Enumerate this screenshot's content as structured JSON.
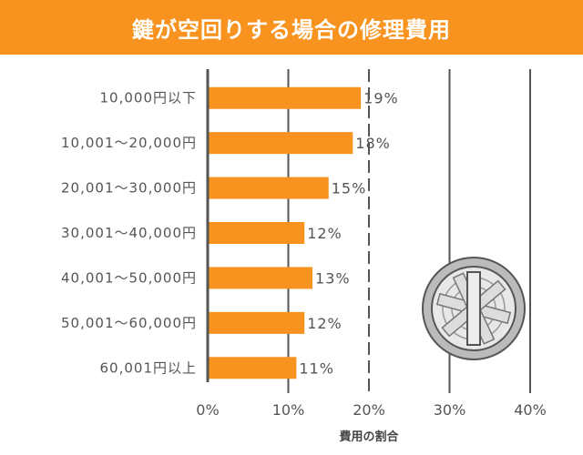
{
  "chart_data": {
    "type": "bar",
    "orientation": "horizontal",
    "title": "鍵が空回りする場合の修理費用",
    "xlabel": "費用の割合",
    "ylabel": "",
    "categories": [
      "10,000円以下",
      "10,001〜20,000円",
      "20,001〜30,000円",
      "30,001〜40,000円",
      "40,001〜50,000円",
      "50,001〜60,000円",
      "60,001円以上"
    ],
    "values": [
      19,
      18,
      15,
      12,
      13,
      12,
      11
    ],
    "value_labels": [
      "19%",
      "18%",
      "15%",
      "12%",
      "13%",
      "12%",
      "11%"
    ],
    "xlim": [
      0,
      40
    ],
    "xticks": [
      "0%",
      "10%",
      "20%",
      "30%",
      "40%"
    ],
    "grid": true,
    "bar_color": "#f7931e",
    "title_bg": "#f7931e",
    "decoration_icon": "lock-cylinder-icon"
  }
}
